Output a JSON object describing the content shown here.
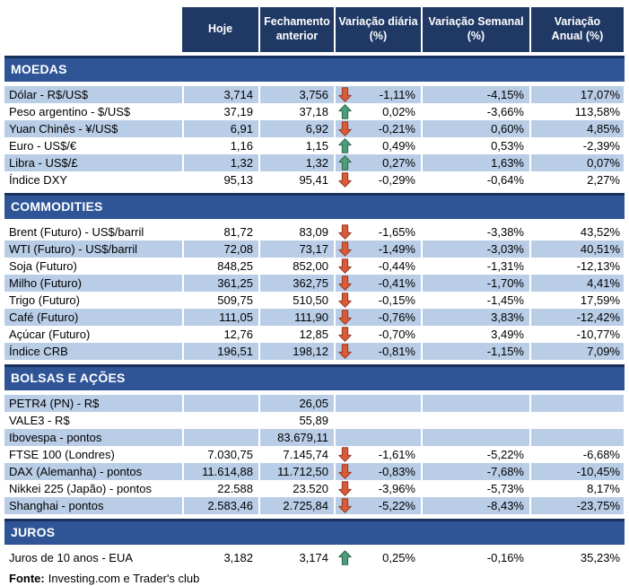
{
  "table": {
    "columns": [
      "Hoje",
      "Fechamento\nanterior",
      "Variação diária\n(%)",
      "Variação Semanal\n(%)",
      "Variação\nAnual (%)"
    ],
    "sections": [
      {
        "title": "MOEDAS",
        "first_row_striped": true,
        "rows": [
          {
            "label": "Dólar - R$/US$",
            "hoje": "3,714",
            "prev": "3,756",
            "dir": "down",
            "daily": "-1,11%",
            "weekly": "-4,15%",
            "annual": "17,07%"
          },
          {
            "label": "Peso argentino - $/US$",
            "hoje": "37,19",
            "prev": "37,18",
            "dir": "up",
            "daily": "0,02%",
            "weekly": "-3,66%",
            "annual": "113,58%"
          },
          {
            "label": "Yuan Chinês - ¥/US$",
            "hoje": "6,91",
            "prev": "6,92",
            "dir": "down",
            "daily": "-0,21%",
            "weekly": "0,60%",
            "annual": "4,85%"
          },
          {
            "label": "Euro - US$/€",
            "hoje": "1,16",
            "prev": "1,15",
            "dir": "up",
            "daily": "0,49%",
            "weekly": "0,53%",
            "annual": "-2,39%"
          },
          {
            "label": "Libra - US$/£",
            "hoje": "1,32",
            "prev": "1,32",
            "dir": "up",
            "daily": "0,27%",
            "weekly": "1,63%",
            "annual": "0,07%"
          },
          {
            "label": "Índice DXY",
            "hoje": "95,13",
            "prev": "95,41",
            "dir": "down",
            "daily": "-0,29%",
            "weekly": "-0,64%",
            "annual": "2,27%"
          }
        ]
      },
      {
        "title": "COMMODITIES",
        "first_row_striped": false,
        "rows": [
          {
            "label": "Brent (Futuro) - US$/barril",
            "hoje": "81,72",
            "prev": "83,09",
            "dir": "down",
            "daily": "-1,65%",
            "weekly": "-3,38%",
            "annual": "43,52%"
          },
          {
            "label": "WTI (Futuro) - US$/barril",
            "hoje": "72,08",
            "prev": "73,17",
            "dir": "down",
            "daily": "-1,49%",
            "weekly": "-3,03%",
            "annual": "40,51%"
          },
          {
            "label": "Soja (Futuro)",
            "hoje": "848,25",
            "prev": "852,00",
            "dir": "down",
            "daily": "-0,44%",
            "weekly": "-1,31%",
            "annual": "-12,13%"
          },
          {
            "label": "Milho (Futuro)",
            "hoje": "361,25",
            "prev": "362,75",
            "dir": "down",
            "daily": "-0,41%",
            "weekly": "-1,70%",
            "annual": "4,41%"
          },
          {
            "label": "Trigo (Futuro)",
            "hoje": "509,75",
            "prev": "510,50",
            "dir": "down",
            "daily": "-0,15%",
            "weekly": "-1,45%",
            "annual": "17,59%"
          },
          {
            "label": "Café (Futuro)",
            "hoje": "111,05",
            "prev": "111,90",
            "dir": "down",
            "daily": "-0,76%",
            "weekly": "3,83%",
            "annual": "-12,42%"
          },
          {
            "label": "Açúcar (Futuro)",
            "hoje": "12,76",
            "prev": "12,85",
            "dir": "down",
            "daily": "-0,70%",
            "weekly": "3,49%",
            "annual": "-10,77%"
          },
          {
            "label": "Índice CRB",
            "hoje": "196,51",
            "prev": "198,12",
            "dir": "down",
            "daily": "-0,81%",
            "weekly": "-1,15%",
            "annual": "7,09%"
          }
        ]
      },
      {
        "title": "BOLSAS E AÇÕES",
        "first_row_striped": true,
        "rows": [
          {
            "label": "PETR4 (PN) - R$",
            "hoje": "",
            "prev": "26,05",
            "dir": "none",
            "daily": "",
            "weekly": "",
            "annual": ""
          },
          {
            "label": "VALE3 - R$",
            "hoje": "",
            "prev": "55,89",
            "dir": "none",
            "daily": "",
            "weekly": "",
            "annual": ""
          },
          {
            "label": "Ibovespa - pontos",
            "hoje": "",
            "prev": "83.679,11",
            "dir": "none",
            "daily": "",
            "weekly": "",
            "annual": ""
          },
          {
            "label": "FTSE 100 (Londres)",
            "hoje": "7.030,75",
            "prev": "7.145,74",
            "dir": "down",
            "daily": "-1,61%",
            "weekly": "-5,22%",
            "annual": "-6,68%"
          },
          {
            "label": "DAX (Alemanha) - pontos",
            "hoje": "11.614,88",
            "prev": "11.712,50",
            "dir": "down",
            "daily": "-0,83%",
            "weekly": "-7,68%",
            "annual": "-10,45%"
          },
          {
            "label": "Nikkei 225 (Japão) - pontos",
            "hoje": "22.588",
            "prev": "23.520",
            "dir": "down",
            "daily": "-3,96%",
            "weekly": "-5,73%",
            "annual": "8,17%"
          },
          {
            "label": "Shanghai - pontos",
            "hoje": "2.583,46",
            "prev": "2.725,84",
            "dir": "down",
            "daily": "-5,22%",
            "weekly": "-8,43%",
            "annual": "-23,75%"
          }
        ]
      },
      {
        "title": "JUROS",
        "first_row_striped": false,
        "rows": [
          {
            "label": "Juros de 10 anos - EUA",
            "hoje": "3,182",
            "prev": "3,174",
            "dir": "up",
            "daily": "0,25%",
            "weekly": "-0,16%",
            "annual": "35,23%"
          }
        ]
      }
    ],
    "source_label": "Fonte:",
    "source_text": "Investing.com e Trader's club"
  },
  "colors": {
    "header_bg": "#1F3864",
    "section_bg": "#2F5597",
    "section_border": "#17305C",
    "stripe_row": "#B9CDE7",
    "arrow_up": "#4E9C79",
    "arrow_up_outline": "#2F6E53",
    "arrow_down": "#D85C3C",
    "arrow_down_outline": "#A13B22"
  }
}
